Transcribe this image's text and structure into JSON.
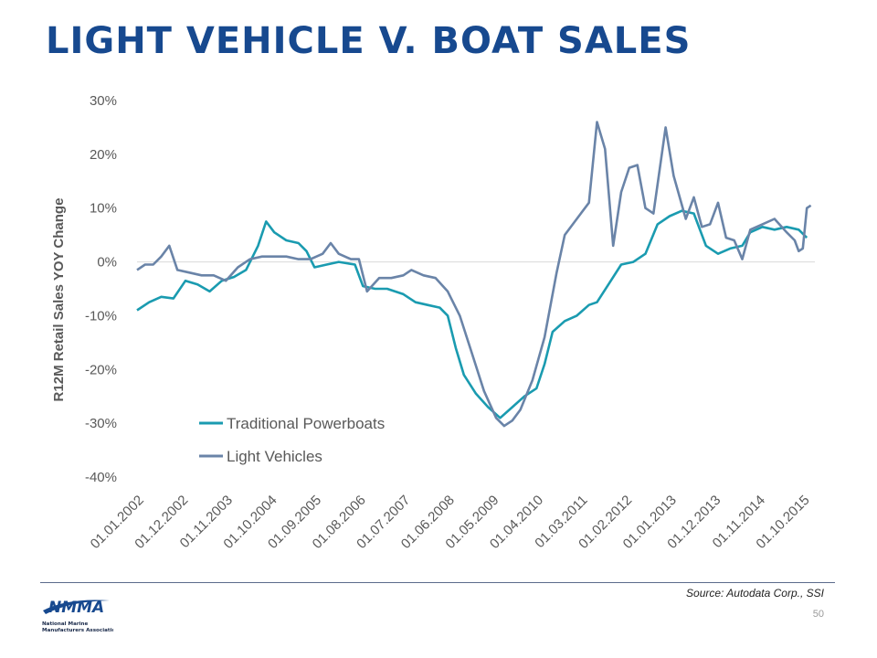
{
  "slide": {
    "title": "LIGHT VEHICLE V. BOAT SALES",
    "source": "Source: Autodata Corp., SSI",
    "page_number": "50",
    "logo_wordmark": "NMMA",
    "logo_caption": "National Marine Manufacturers Association",
    "title_color": "#17498f"
  },
  "chart_data": {
    "type": "line",
    "title": "",
    "xlabel": "",
    "ylabel": "R12M Retail Sales YOY Change",
    "ylim": [
      -40,
      30
    ],
    "yticks": [
      30,
      20,
      10,
      0,
      -10,
      -20,
      -30,
      -40
    ],
    "ytick_labels": [
      "30%",
      "20%",
      "10%",
      "0%",
      "-10%",
      "-20%",
      "-30%",
      "-40%"
    ],
    "x_start": "01.01.2002",
    "x_end": "01.01.2016",
    "xtick_labels": [
      "01.01.2002",
      "01.12.2002",
      "01.11.2003",
      "01.10.2004",
      "01.09.2005",
      "01.08.2006",
      "01.07.2007",
      "01.06.2008",
      "01.05.2009",
      "01.04.2010",
      "01.03.2011",
      "01.02.2012",
      "01.01.2013",
      "01.12.2013",
      "01.11.2014",
      "01.10.2015"
    ],
    "grid": false,
    "legend_position": "lower-left",
    "series": [
      {
        "name": "Traditional Powerboats",
        "color": "#1a9bb0",
        "points": [
          [
            "01.01.2002",
            -9.0
          ],
          [
            "01.04.2002",
            -7.5
          ],
          [
            "01.07.2002",
            -6.5
          ],
          [
            "01.10.2002",
            -6.8
          ],
          [
            "01.01.2003",
            -3.5
          ],
          [
            "01.04.2003",
            -4.2
          ],
          [
            "01.07.2003",
            -5.5
          ],
          [
            "01.10.2003",
            -3.5
          ],
          [
            "01.01.2004",
            -2.8
          ],
          [
            "01.04.2004",
            -1.5
          ],
          [
            "01.07.2004",
            3.0
          ],
          [
            "01.09.2004",
            7.5
          ],
          [
            "01.11.2004",
            5.5
          ],
          [
            "01.02.2005",
            4.0
          ],
          [
            "01.05.2005",
            3.5
          ],
          [
            "01.07.2005",
            2.0
          ],
          [
            "01.09.2005",
            -1.0
          ],
          [
            "01.12.2005",
            -0.5
          ],
          [
            "01.03.2006",
            0.0
          ],
          [
            "01.07.2006",
            -0.5
          ],
          [
            "01.09.2006",
            -4.5
          ],
          [
            "01.12.2006",
            -5.0
          ],
          [
            "01.03.2007",
            -5.0
          ],
          [
            "01.07.2007",
            -6.0
          ],
          [
            "01.10.2007",
            -7.5
          ],
          [
            "01.01.2008",
            -8.0
          ],
          [
            "01.04.2008",
            -8.5
          ],
          [
            "01.06.2008",
            -10.0
          ],
          [
            "01.08.2008",
            -16.0
          ],
          [
            "01.10.2008",
            -21.0
          ],
          [
            "01.01.2009",
            -24.5
          ],
          [
            "01.04.2009",
            -27.0
          ],
          [
            "01.07.2009",
            -29.0
          ],
          [
            "01.10.2009",
            -27.0
          ],
          [
            "01.01.2010",
            -25.0
          ],
          [
            "01.04.2010",
            -23.5
          ],
          [
            "01.06.2010",
            -19.0
          ],
          [
            "01.08.2010",
            -13.0
          ],
          [
            "01.11.2010",
            -11.0
          ],
          [
            "01.02.2011",
            -10.0
          ],
          [
            "01.05.2011",
            -8.0
          ],
          [
            "01.07.2011",
            -7.5
          ],
          [
            "01.10.2011",
            -4.0
          ],
          [
            "01.01.2012",
            -0.5
          ],
          [
            "01.04.2012",
            0.0
          ],
          [
            "01.07.2012",
            1.5
          ],
          [
            "01.10.2012",
            7.0
          ],
          [
            "01.01.2013",
            8.5
          ],
          [
            "01.04.2013",
            9.5
          ],
          [
            "01.07.2013",
            9.0
          ],
          [
            "01.10.2013",
            3.0
          ],
          [
            "01.01.2014",
            1.5
          ],
          [
            "01.04.2014",
            2.5
          ],
          [
            "01.07.2014",
            3.0
          ],
          [
            "01.09.2014",
            5.5
          ],
          [
            "01.12.2014",
            6.5
          ],
          [
            "01.03.2015",
            6.0
          ],
          [
            "01.06.2015",
            6.5
          ],
          [
            "01.09.2015",
            6.0
          ],
          [
            "01.11.2015",
            4.5
          ]
        ]
      },
      {
        "name": "Light Vehicles",
        "color": "#6a84a8",
        "points": [
          [
            "01.01.2002",
            -1.5
          ],
          [
            "01.03.2002",
            -0.5
          ],
          [
            "01.05.2002",
            -0.5
          ],
          [
            "01.07.2002",
            1.0
          ],
          [
            "01.09.2002",
            3.0
          ],
          [
            "01.11.2002",
            -1.5
          ],
          [
            "01.02.2003",
            -2.0
          ],
          [
            "01.05.2003",
            -2.5
          ],
          [
            "01.08.2003",
            -2.5
          ],
          [
            "01.11.2003",
            -3.5
          ],
          [
            "01.02.2004",
            -1.0
          ],
          [
            "01.05.2004",
            0.5
          ],
          [
            "01.08.2004",
            1.0
          ],
          [
            "01.11.2004",
            1.0
          ],
          [
            "01.02.2005",
            1.0
          ],
          [
            "01.05.2005",
            0.5
          ],
          [
            "01.08.2005",
            0.5
          ],
          [
            "01.11.2005",
            1.5
          ],
          [
            "01.01.2006",
            3.5
          ],
          [
            "01.03.2006",
            1.5
          ],
          [
            "01.06.2006",
            0.5
          ],
          [
            "01.08.2006",
            0.5
          ],
          [
            "01.10.2006",
            -5.5
          ],
          [
            "01.01.2007",
            -3.0
          ],
          [
            "01.04.2007",
            -3.0
          ],
          [
            "01.07.2007",
            -2.5
          ],
          [
            "01.09.2007",
            -1.5
          ],
          [
            "01.12.2007",
            -2.5
          ],
          [
            "01.03.2008",
            -3.0
          ],
          [
            "01.06.2008",
            -5.5
          ],
          [
            "01.09.2008",
            -10.0
          ],
          [
            "01.12.2008",
            -17.0
          ],
          [
            "01.03.2009",
            -24.0
          ],
          [
            "01.06.2009",
            -29.0
          ],
          [
            "01.08.2009",
            -30.5
          ],
          [
            "01.10.2009",
            -29.5
          ],
          [
            "01.12.2009",
            -27.5
          ],
          [
            "01.03.2010",
            -22.0
          ],
          [
            "01.06.2010",
            -14.0
          ],
          [
            "01.09.2010",
            -2.0
          ],
          [
            "01.11.2010",
            5.0
          ],
          [
            "01.01.2011",
            7.0
          ],
          [
            "01.03.2011",
            9.0
          ],
          [
            "01.05.2011",
            11.0
          ],
          [
            "01.07.2011",
            26.0
          ],
          [
            "01.09.2011",
            21.0
          ],
          [
            "01.11.2011",
            3.0
          ],
          [
            "01.01.2012",
            13.0
          ],
          [
            "01.03.2012",
            17.5
          ],
          [
            "01.05.2012",
            18.0
          ],
          [
            "01.07.2012",
            10.0
          ],
          [
            "01.09.2012",
            9.0
          ],
          [
            "01.12.2012",
            25.0
          ],
          [
            "01.02.2013",
            16.0
          ],
          [
            "01.05.2013",
            8.0
          ],
          [
            "01.07.2013",
            12.0
          ],
          [
            "01.09.2013",
            6.5
          ],
          [
            "01.11.2013",
            7.0
          ],
          [
            "01.01.2014",
            11.0
          ],
          [
            "01.03.2014",
            4.5
          ],
          [
            "01.05.2014",
            4.0
          ],
          [
            "01.07.2014",
            0.5
          ],
          [
            "01.09.2014",
            6.0
          ],
          [
            "01.12.2014",
            7.0
          ],
          [
            "01.03.2015",
            8.0
          ],
          [
            "01.06.2015",
            5.5
          ],
          [
            "01.08.2015",
            4.0
          ],
          [
            "01.09.2015",
            2.0
          ],
          [
            "01.10.2015",
            2.5
          ],
          [
            "01.11.2015",
            10.0
          ],
          [
            "01.12.2015",
            10.5
          ]
        ]
      }
    ]
  }
}
